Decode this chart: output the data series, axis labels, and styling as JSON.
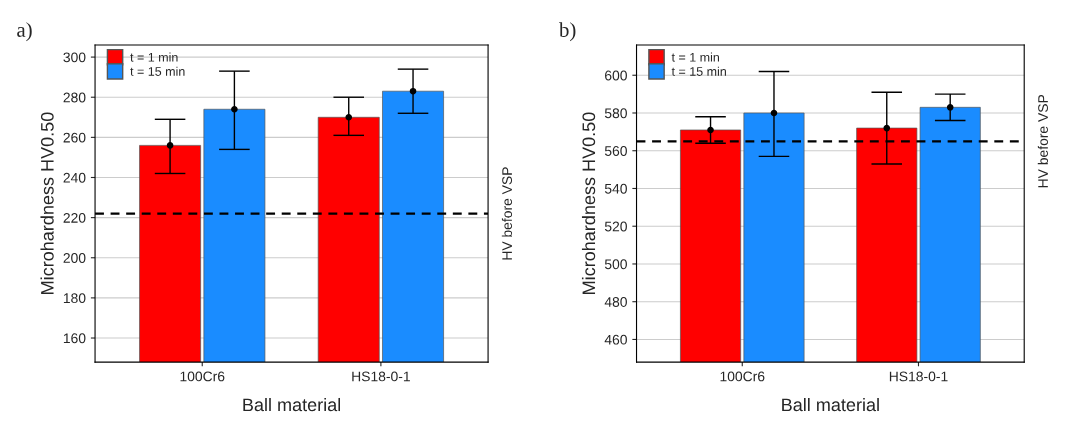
{
  "chart_data": [
    {
      "type": "bar",
      "title": "a)",
      "xlabel": "Ball material",
      "ylabel": "Microhardness HV0.50",
      "categories": [
        "100Cr6",
        "HS18-0-1"
      ],
      "series": [
        {
          "name": "t = 1 min",
          "color": "#ff0000",
          "values": [
            256,
            270
          ],
          "errors": [
            [
              242,
              269
            ],
            [
              261,
              280
            ]
          ]
        },
        {
          "name": "t = 15 min",
          "color": "#1a8cff",
          "values": [
            274,
            283
          ],
          "errors": [
            [
              254,
              293
            ],
            [
              272,
              294
            ]
          ]
        },
        {
          "type": "scatter",
          "color": "#000000",
          "marker": "circle",
          "x": [
            "100Cr6",
            "HS18-0-1"
          ],
          "values": [
            256,
            270
          ]
        },
        {
          "type": "scatter",
          "color": "#000000",
          "marker": "circle",
          "x": [
            "100Cr6",
            "HS18-0-1"
          ],
          "values": [
            274,
            283
          ]
        }
      ],
      "ylim": [
        148,
        306
      ],
      "yticks": [
        160,
        180,
        200,
        220,
        240,
        260,
        280,
        300
      ],
      "grid": "y",
      "legend": "top left",
      "ref_lines": [
        {
          "axis": "y",
          "value": 222,
          "label": "HV before VSP",
          "line_style": "dashed",
          "color": "#000000"
        }
      ]
    },
    {
      "type": "bar",
      "title": "b)",
      "xlabel": "Ball material",
      "ylabel": "Microhardness HV0.50",
      "categories": [
        "100Cr6",
        "HS18-0-1"
      ],
      "series": [
        {
          "name": "t = 1 min",
          "color": "#ff0000",
          "values": [
            571,
            572
          ],
          "errors": [
            [
              564,
              578
            ],
            [
              553,
              591
            ]
          ]
        },
        {
          "name": "t = 15 min",
          "color": "#1a8cff",
          "values": [
            580,
            583
          ],
          "errors": [
            [
              557,
              602
            ],
            [
              576,
              590
            ]
          ]
        },
        {
          "type": "scatter",
          "color": "#000000",
          "marker": "circle",
          "x": [
            "100Cr6",
            "HS18-0-1"
          ],
          "values": [
            571,
            572
          ]
        },
        {
          "type": "scatter",
          "color": "#000000",
          "marker": "circle",
          "x": [
            "100Cr6",
            "HS18-0-1"
          ],
          "values": [
            580,
            583
          ]
        }
      ],
      "ylim": [
        448,
        616
      ],
      "yticks": [
        460,
        480,
        500,
        520,
        540,
        560,
        580,
        600
      ],
      "grid": "y",
      "legend": "top left",
      "ref_lines": [
        {
          "axis": "y",
          "value": 565,
          "label": "HV before VSP",
          "line_style": "dashed",
          "color": "#000000"
        }
      ]
    }
  ]
}
